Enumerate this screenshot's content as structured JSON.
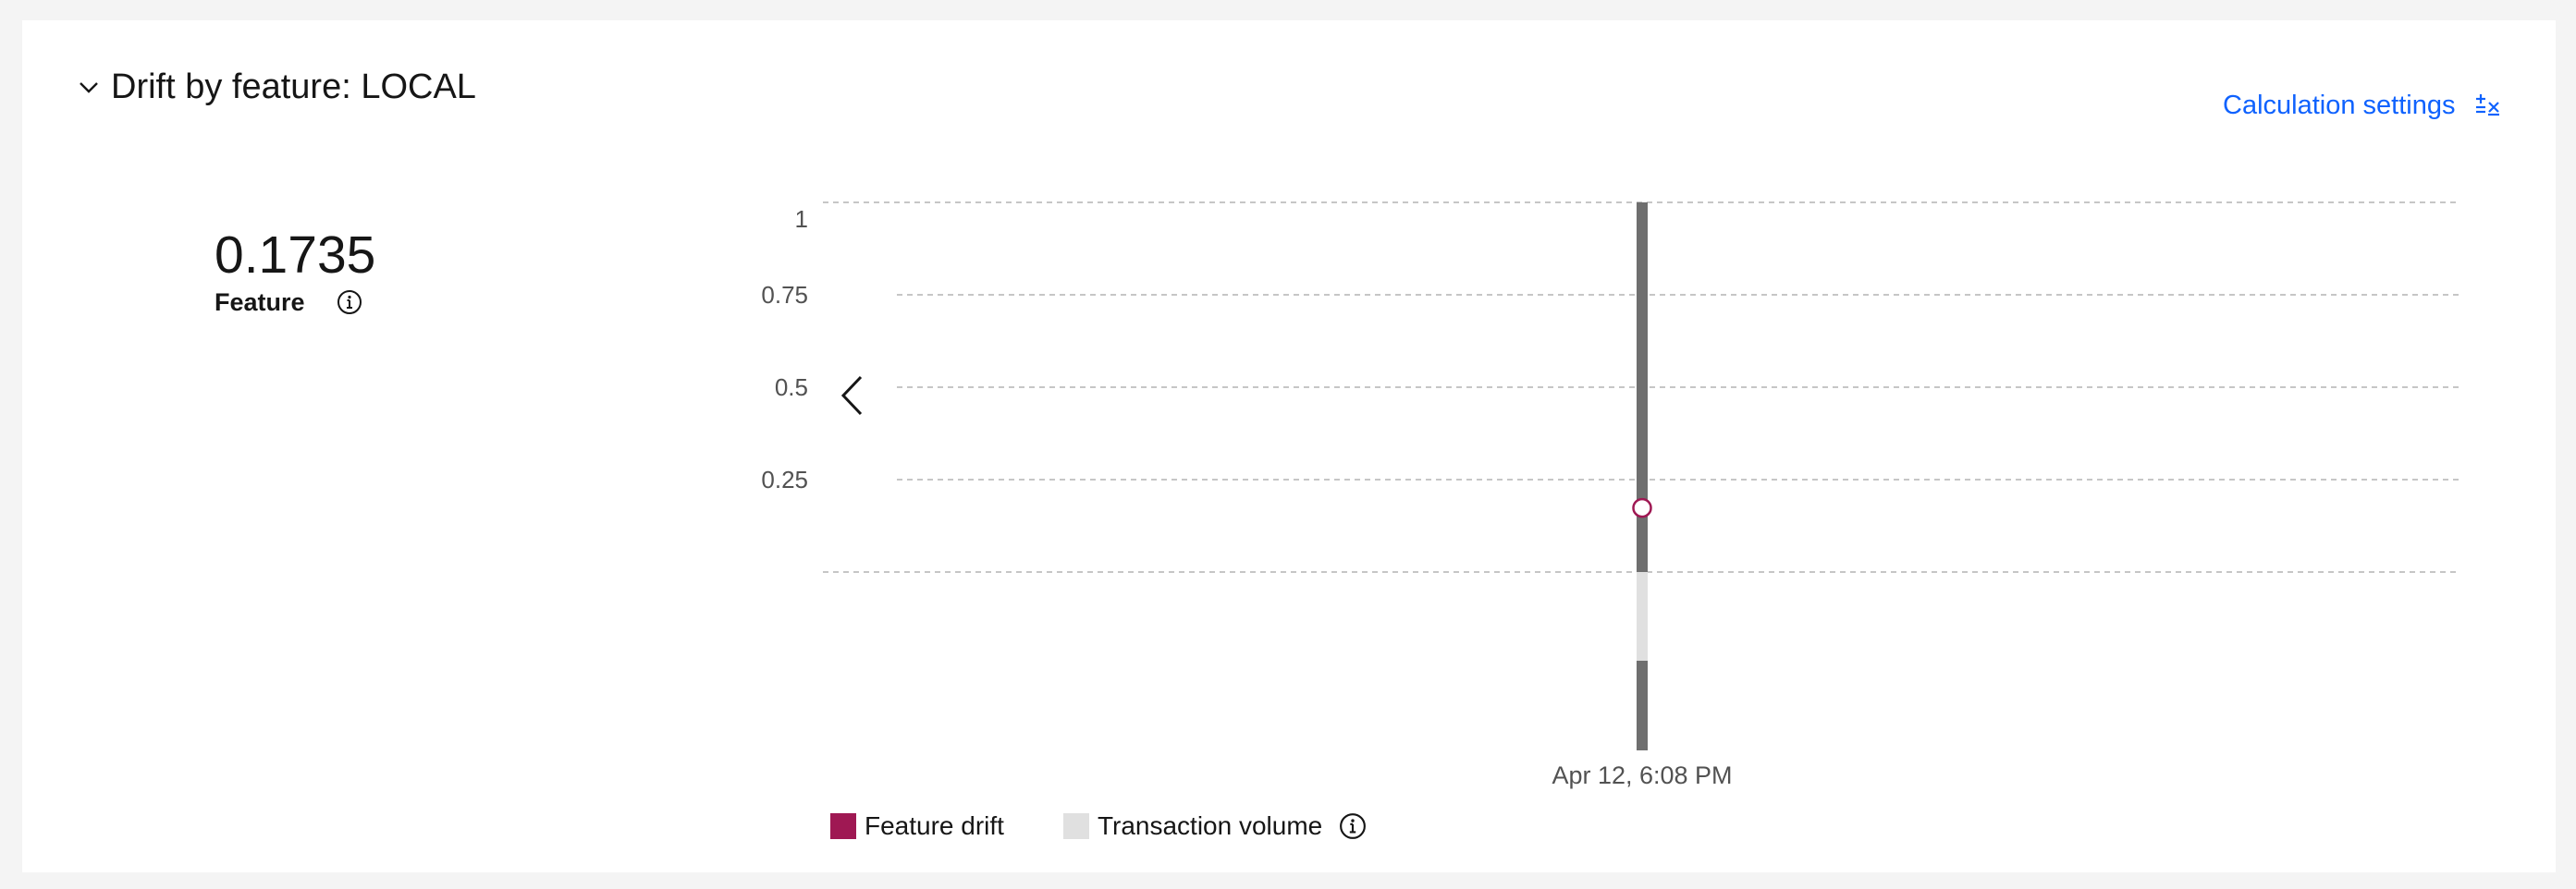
{
  "header": {
    "title": "Drift by feature: LOCAL",
    "calculation_settings_label": "Calculation settings"
  },
  "metric": {
    "value": "0.1735",
    "label": "Feature"
  },
  "legend": {
    "items": [
      {
        "label": "Feature drift",
        "color": "#9f1853"
      },
      {
        "label": "Transaction volume",
        "color": "#e0e0e0"
      }
    ]
  },
  "colors": {
    "accent_link": "#0f62fe",
    "bar_dark": "#6f6f6f",
    "bar_light": "#e0e0e0",
    "marker": "#9f1853"
  },
  "chart_data": {
    "type": "line",
    "x_ticks": [
      "Apr 12, 6:08 PM"
    ],
    "y_ticks": [
      "1",
      "0.75",
      "0.5",
      "0.25"
    ],
    "ylim": [
      0,
      1
    ],
    "series": [
      {
        "name": "Feature drift",
        "x": [
          "Apr 12, 6:08 PM"
        ],
        "values": [
          0.1735
        ]
      }
    ],
    "grid": true,
    "legend_position": "bottom-left"
  }
}
